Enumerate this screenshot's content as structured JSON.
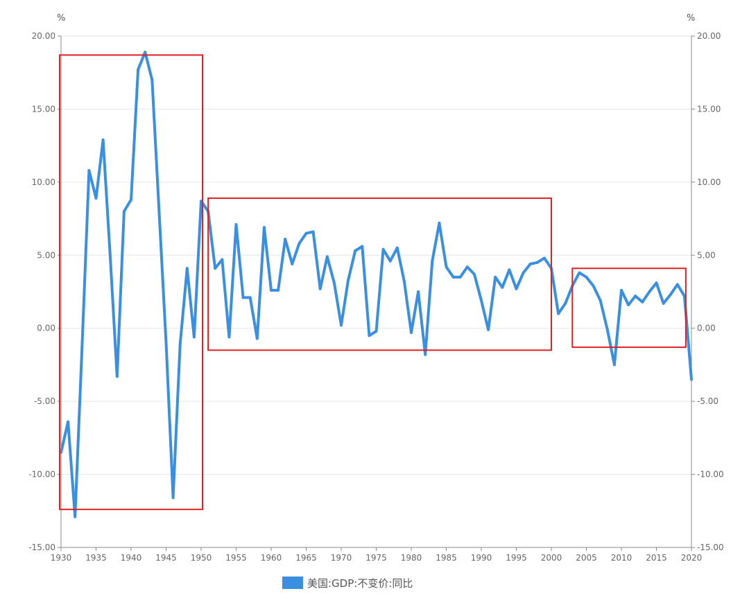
{
  "chart_data": {
    "type": "line",
    "title": "",
    "xlabel": "",
    "ylabel": "%",
    "ylabel_right": "%",
    "xlim": [
      1930,
      2020
    ],
    "ylim": [
      -15,
      20
    ],
    "x_ticks": [
      "1930",
      "1935",
      "1940",
      "1945",
      "1950",
      "1955",
      "1960",
      "1965",
      "1970",
      "1975",
      "1980",
      "1985",
      "1990",
      "1995",
      "2000",
      "2005",
      "2010",
      "2015",
      "2020"
    ],
    "y_ticks": [
      "20.00",
      "15.00",
      "10.00",
      "5.00",
      "0.00",
      "-5.00",
      "-10.00",
      "-15.00"
    ],
    "grid": "horizontal",
    "legend_position": "bottom-center",
    "series": [
      {
        "name": "美国:GDP:不变价:同比",
        "color": "#3b8fe0",
        "x": [
          1930,
          1931,
          1932,
          1933,
          1934,
          1935,
          1936,
          1937,
          1938,
          1939,
          1940,
          1941,
          1942,
          1943,
          1944,
          1945,
          1946,
          1947,
          1948,
          1949,
          1950,
          1951,
          1952,
          1953,
          1954,
          1955,
          1956,
          1957,
          1958,
          1959,
          1960,
          1961,
          1962,
          1963,
          1964,
          1965,
          1966,
          1967,
          1968,
          1969,
          1970,
          1971,
          1972,
          1973,
          1974,
          1975,
          1976,
          1977,
          1978,
          1979,
          1980,
          1981,
          1982,
          1983,
          1984,
          1985,
          1986,
          1987,
          1988,
          1989,
          1990,
          1991,
          1992,
          1993,
          1994,
          1995,
          1996,
          1997,
          1998,
          1999,
          2000,
          2001,
          2002,
          2003,
          2004,
          2005,
          2006,
          2007,
          2008,
          2009,
          2010,
          2011,
          2012,
          2013,
          2014,
          2015,
          2016,
          2017,
          2018,
          2019,
          2020
        ],
        "values": [
          -8.5,
          -6.4,
          -12.9,
          -1.3,
          10.8,
          8.9,
          12.9,
          5.1,
          -3.3,
          8.0,
          8.8,
          17.7,
          18.9,
          17.0,
          8.0,
          -1.0,
          -11.6,
          -1.1,
          4.1,
          -0.6,
          8.7,
          8.0,
          4.1,
          4.7,
          -0.6,
          7.1,
          2.1,
          2.1,
          -0.7,
          6.9,
          2.6,
          2.6,
          6.1,
          4.4,
          5.8,
          6.5,
          6.6,
          2.7,
          4.9,
          3.1,
          0.2,
          3.3,
          5.3,
          5.6,
          -0.5,
          -0.2,
          5.4,
          4.6,
          5.5,
          3.2,
          -0.3,
          2.5,
          -1.8,
          4.6,
          7.2,
          4.2,
          3.5,
          3.5,
          4.2,
          3.7,
          1.9,
          -0.1,
          3.5,
          2.8,
          4.0,
          2.7,
          3.8,
          4.4,
          4.5,
          4.8,
          4.1,
          1.0,
          1.7,
          2.9,
          3.8,
          3.5,
          2.9,
          1.9,
          -0.1,
          -2.5,
          2.6,
          1.6,
          2.2,
          1.8,
          2.5,
          3.1,
          1.7,
          2.3,
          3.0,
          2.2,
          -3.5
        ]
      }
    ],
    "annotations": [
      {
        "type": "rectangle",
        "color": "#e02020",
        "x_range": [
          1929.8,
          1950.2
        ],
        "y_range": [
          -12.4,
          18.7
        ]
      },
      {
        "type": "rectangle",
        "color": "#e02020",
        "x_range": [
          1951.0,
          2000.0
        ],
        "y_range": [
          -1.5,
          8.9
        ]
      },
      {
        "type": "rectangle",
        "color": "#e02020",
        "x_range": [
          2003.0,
          2019.2
        ],
        "y_range": [
          -1.3,
          4.1
        ]
      }
    ]
  }
}
